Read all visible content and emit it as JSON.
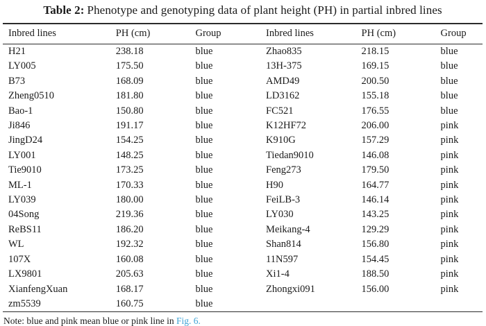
{
  "title": {
    "label": "Table 2:",
    "text": "Phenotype and genotyping data of plant height (PH) in partial inbred lines"
  },
  "table": {
    "headers": [
      "Inbred lines",
      "PH (cm)",
      "Group",
      "Inbred lines",
      "PH (cm)",
      "Group"
    ],
    "rows": [
      [
        "H21",
        "238.18",
        "blue",
        "Zhao835",
        "218.15",
        "blue"
      ],
      [
        "LY005",
        "175.50",
        "blue",
        "13H-375",
        "169.15",
        "blue"
      ],
      [
        "B73",
        "168.09",
        "blue",
        "AMD49",
        "200.50",
        "blue"
      ],
      [
        "Zheng0510",
        "181.80",
        "blue",
        "LD3162",
        "155.18",
        "blue"
      ],
      [
        "Bao-1",
        "150.80",
        "blue",
        "FC521",
        "176.55",
        "blue"
      ],
      [
        "Ji846",
        "191.17",
        "blue",
        "K12HF72",
        "206.00",
        "pink"
      ],
      [
        "JingD24",
        "154.25",
        "blue",
        "K910G",
        "157.29",
        "pink"
      ],
      [
        "LY001",
        "148.25",
        "blue",
        "Tiedan9010",
        "146.08",
        "pink"
      ],
      [
        "Tie9010",
        "173.25",
        "blue",
        "Feng273",
        "179.50",
        "pink"
      ],
      [
        "ML-1",
        "170.33",
        "blue",
        "H90",
        "164.77",
        "pink"
      ],
      [
        "LY039",
        "180.00",
        "blue",
        "FeiLB-3",
        "146.14",
        "pink"
      ],
      [
        "04Song",
        "219.36",
        "blue",
        "LY030",
        "143.25",
        "pink"
      ],
      [
        "ReBS11",
        "186.20",
        "blue",
        "Meikang-4",
        "129.29",
        "pink"
      ],
      [
        "WL",
        "192.32",
        "blue",
        "Shan814",
        "156.80",
        "pink"
      ],
      [
        "107X",
        "160.08",
        "blue",
        "11N597",
        "154.45",
        "pink"
      ],
      [
        "LX9801",
        "205.63",
        "blue",
        "Xi1-4",
        "188.50",
        "pink"
      ],
      [
        "XianfengXuan",
        "168.17",
        "blue",
        "Zhongxi091",
        "156.00",
        "pink"
      ],
      [
        "zm5539",
        "160.75",
        "blue",
        "",
        "",
        ""
      ]
    ]
  },
  "note": {
    "prefix": "Note: blue and pink mean blue or pink line in ",
    "link": "Fig. 6."
  },
  "colors": {
    "link": "#3FA3D5",
    "text": "#1a1a1a",
    "rule": "#2b2b2b"
  }
}
